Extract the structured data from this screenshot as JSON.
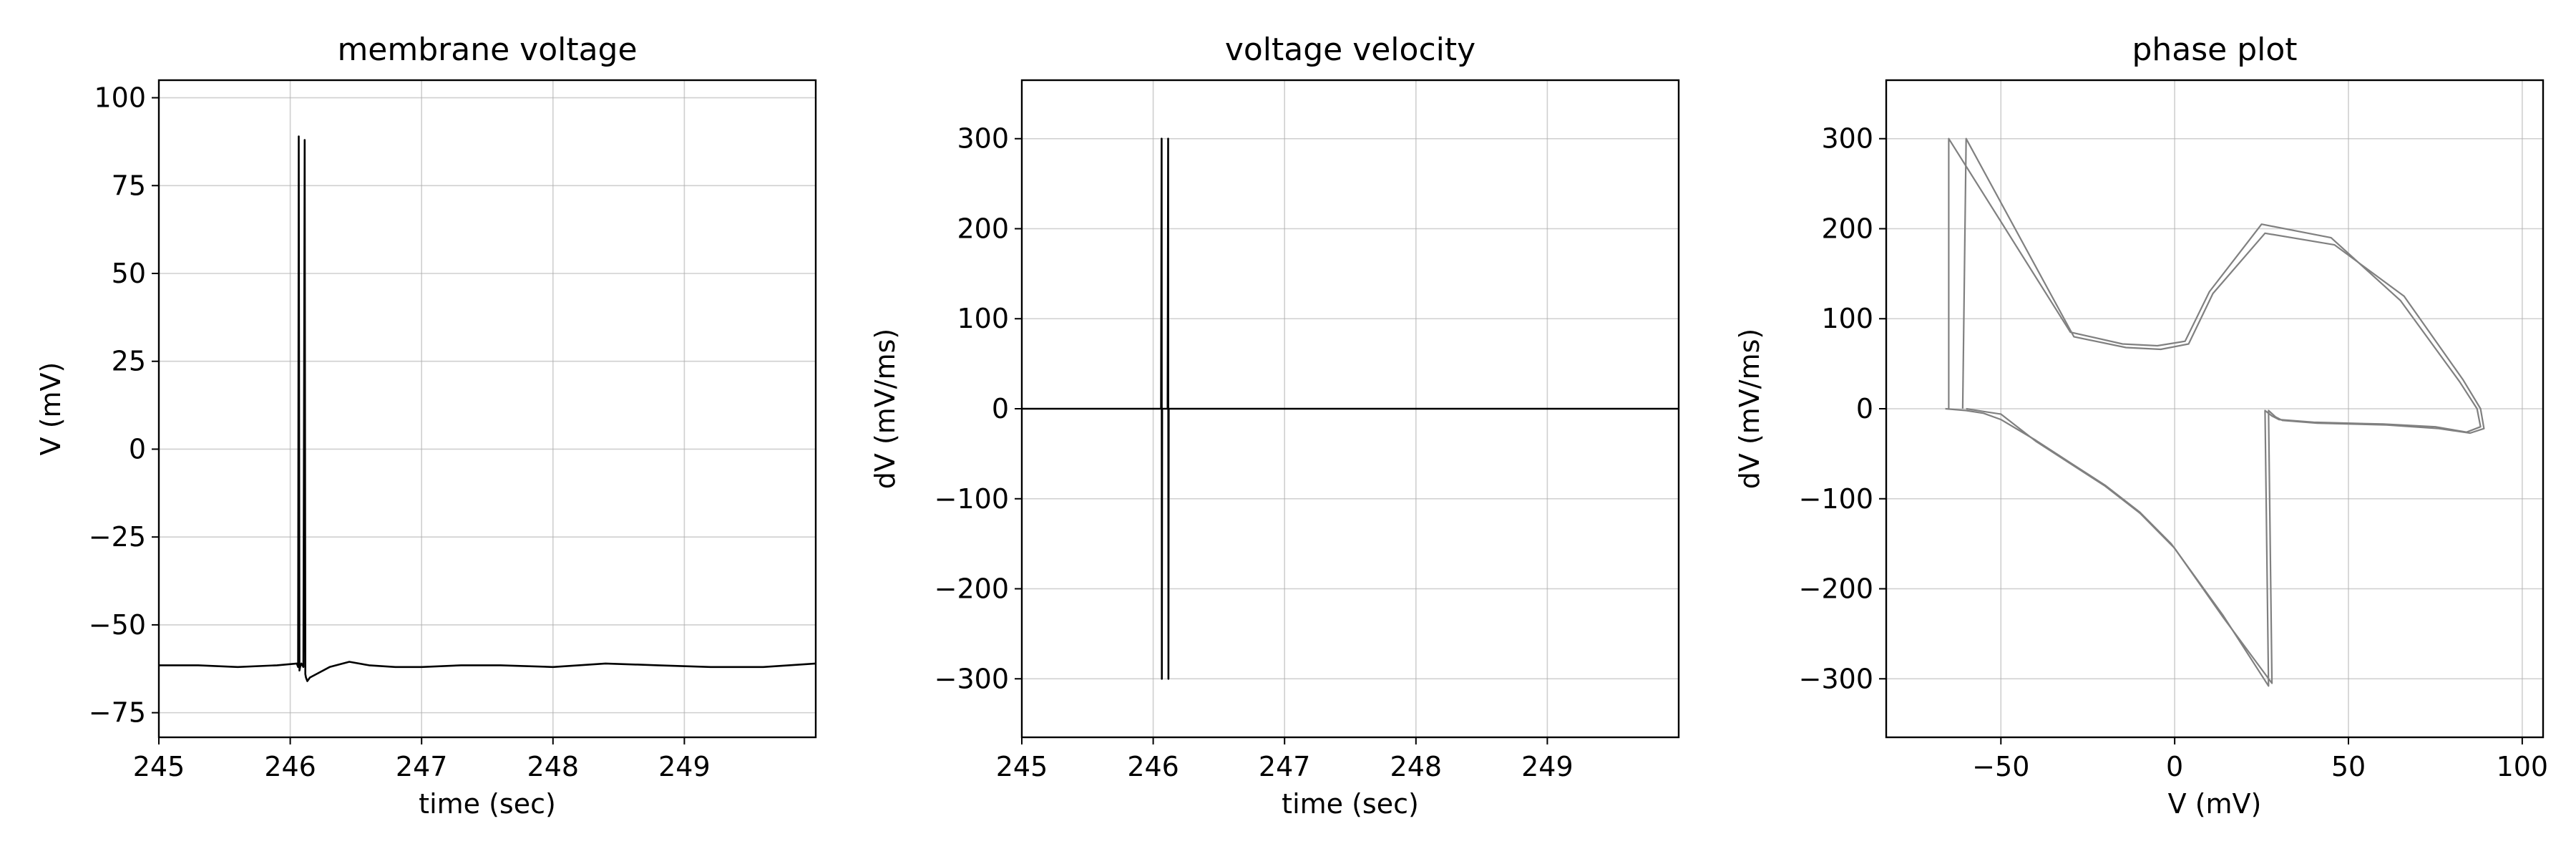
{
  "chart_data": [
    {
      "type": "line",
      "title": "membrane voltage",
      "xlabel": "time (sec)",
      "ylabel": "V (mV)",
      "xlim": [
        245,
        250
      ],
      "ylim": [
        -82,
        105
      ],
      "xticks": [
        245,
        246,
        247,
        248,
        249
      ],
      "xtick_labels": [
        "245",
        "246",
        "247",
        "248",
        "249"
      ],
      "yticks": [
        -75,
        -50,
        -25,
        0,
        25,
        50,
        75,
        100
      ],
      "ytick_labels": [
        "−75",
        "−50",
        "−25",
        "0",
        "25",
        "50",
        "75",
        "100"
      ],
      "grid": true,
      "color": "#000000",
      "series": [
        {
          "x": [
            245.0,
            245.3,
            245.6,
            245.9,
            246.05,
            246.06,
            246.065,
            246.07,
            246.075,
            246.085,
            246.1,
            246.11,
            246.115,
            246.12,
            246.13,
            246.15,
            246.2,
            246.3,
            246.45,
            246.6,
            246.8,
            247.0,
            247.3,
            247.6,
            248.0,
            248.4,
            248.8,
            249.2,
            249.6,
            250.0
          ],
          "y": [
            -61.5,
            -61.5,
            -62,
            -61.5,
            -61,
            -62,
            89,
            -63,
            -62,
            -61,
            -62,
            88,
            -64,
            -65,
            -66,
            -65,
            -64,
            -62,
            -60.5,
            -61.5,
            -62,
            -62,
            -61.5,
            -61.5,
            -62,
            -61,
            -61.5,
            -62,
            -62,
            -61
          ]
        }
      ]
    },
    {
      "type": "line",
      "title": "voltage velocity",
      "xlabel": "time (sec)",
      "ylabel": "dV (mV/ms)",
      "xlim": [
        245,
        250
      ],
      "ylim": [
        -365,
        365
      ],
      "xticks": [
        245,
        246,
        247,
        248,
        249
      ],
      "xtick_labels": [
        "245",
        "246",
        "247",
        "248",
        "249"
      ],
      "yticks": [
        -300,
        -200,
        -100,
        0,
        100,
        200,
        300
      ],
      "ytick_labels": [
        "−300",
        "−200",
        "−100",
        "0",
        "100",
        "200",
        "300"
      ],
      "grid": true,
      "color": "#000000",
      "series": [
        {
          "x": [
            245.0,
            246.06,
            246.064,
            246.066,
            246.068,
            246.07,
            246.11,
            246.114,
            246.116,
            246.118,
            246.12,
            250.0
          ],
          "y": [
            0,
            0,
            300,
            -300,
            0,
            0,
            0,
            300,
            -300,
            0,
            0,
            0
          ]
        }
      ]
    },
    {
      "type": "line",
      "title": "phase plot",
      "xlabel": "V (mV)",
      "ylabel": "dV (mV/ms)",
      "xlim": [
        -83,
        106
      ],
      "ylim": [
        -365,
        365
      ],
      "xticks": [
        -50,
        0,
        50,
        100
      ],
      "xtick_labels": [
        "−50",
        "0",
        "50",
        "100"
      ],
      "yticks": [
        -300,
        -200,
        -100,
        0,
        100,
        200,
        300
      ],
      "ytick_labels": [
        "−300",
        "−200",
        "−100",
        "0",
        "100",
        "200",
        "300"
      ],
      "grid": true,
      "color": "#808080",
      "series": [
        {
          "x": [
            -66,
            -60,
            -55,
            -50,
            -40,
            -30,
            -20,
            -10,
            -1,
            14,
            27,
            26,
            28,
            30,
            40,
            60,
            75,
            84,
            88,
            87,
            82,
            65,
            45,
            25,
            10,
            3,
            -5,
            -15,
            -30,
            -65,
            -65
          ],
          "y": [
            0,
            -2,
            -5,
            -12,
            -35,
            -60,
            -85,
            -115,
            -150,
            -230,
            -308,
            -2,
            -8,
            -12,
            -15,
            -17,
            -20,
            -26,
            -20,
            0,
            30,
            120,
            190,
            205,
            130,
            75,
            70,
            72,
            85,
            300,
            0
          ]
        },
        {
          "x": [
            -60,
            -55,
            -50,
            -40,
            -30,
            -20,
            -10,
            0,
            14,
            28,
            27,
            29,
            31,
            41,
            61,
            76,
            85,
            89,
            88,
            83,
            66,
            46,
            26,
            11,
            4,
            -4,
            -14,
            -29,
            -60,
            -61
          ],
          "y": [
            0,
            -3,
            -6,
            -36,
            -61,
            -86,
            -116,
            -155,
            -232,
            -305,
            -2,
            -9,
            -13,
            -16,
            -18,
            -22,
            -27,
            -22,
            0,
            32,
            125,
            182,
            195,
            128,
            72,
            66,
            68,
            80,
            300,
            0
          ]
        }
      ]
    }
  ]
}
